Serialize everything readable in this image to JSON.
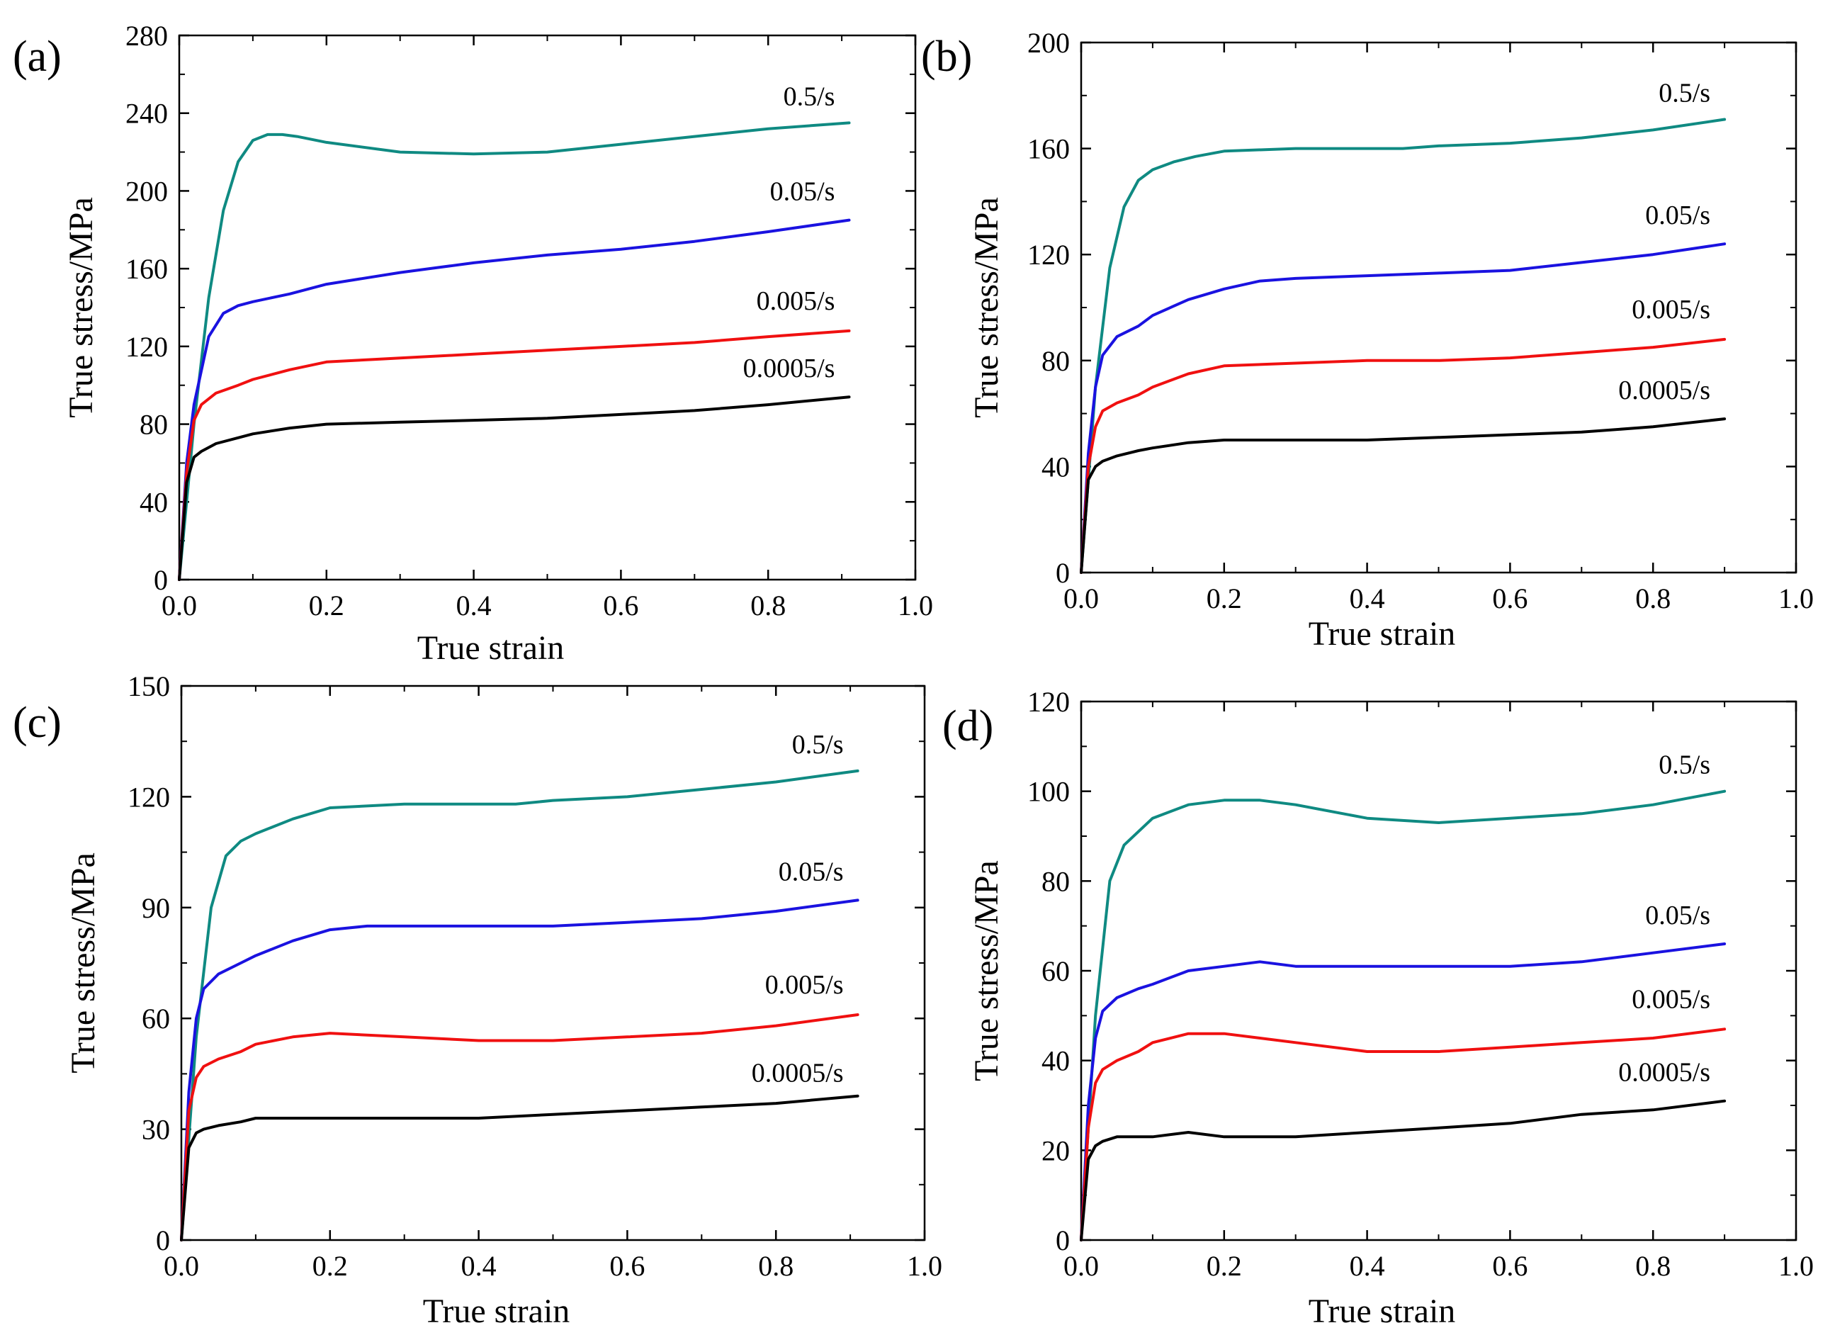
{
  "figure": {
    "description_visible": false
  },
  "chart_data": [
    {
      "panel_label": "(a)",
      "type": "line",
      "xlabel": "True strain",
      "ylabel": "True stress/MPa",
      "xlim": [
        0.0,
        1.0
      ],
      "ylim": [
        0,
        280
      ],
      "xticks": [
        0.0,
        0.2,
        0.4,
        0.6,
        0.8,
        1.0
      ],
      "xtick_labels": [
        "0.0",
        "0.2",
        "0.4",
        "0.6",
        "0.8",
        "1.0"
      ],
      "yticks": [
        0,
        40,
        80,
        120,
        160,
        200,
        240,
        280
      ],
      "ytick_labels": [
        "0",
        "40",
        "80",
        "120",
        "160",
        "200",
        "240",
        "280"
      ],
      "series": [
        {
          "name": "0.5/s",
          "color": "#0f8a82",
          "x": [
            0,
            0.02,
            0.04,
            0.06,
            0.08,
            0.1,
            0.12,
            0.14,
            0.16,
            0.2,
            0.3,
            0.4,
            0.5,
            0.6,
            0.7,
            0.8,
            0.91
          ],
          "y": [
            0,
            80,
            145,
            190,
            215,
            226,
            229,
            229,
            228,
            225,
            220,
            219,
            220,
            224,
            228,
            232,
            235
          ]
        },
        {
          "name": "0.05/s",
          "color": "#1a12e0",
          "x": [
            0,
            0.01,
            0.02,
            0.04,
            0.06,
            0.08,
            0.1,
            0.15,
            0.2,
            0.3,
            0.4,
            0.5,
            0.6,
            0.7,
            0.8,
            0.91
          ],
          "y": [
            0,
            60,
            90,
            125,
            137,
            141,
            143,
            147,
            152,
            158,
            163,
            167,
            170,
            174,
            179,
            185
          ]
        },
        {
          "name": "0.005/s",
          "color": "#f01010",
          "x": [
            0,
            0.01,
            0.02,
            0.03,
            0.05,
            0.08,
            0.1,
            0.15,
            0.2,
            0.3,
            0.4,
            0.5,
            0.6,
            0.7,
            0.8,
            0.91
          ],
          "y": [
            0,
            55,
            82,
            90,
            96,
            100,
            103,
            108,
            112,
            114,
            116,
            118,
            120,
            122,
            125,
            128
          ]
        },
        {
          "name": "0.0005/s",
          "color": "#000000",
          "x": [
            0,
            0.01,
            0.02,
            0.03,
            0.05,
            0.08,
            0.1,
            0.15,
            0.2,
            0.3,
            0.4,
            0.5,
            0.6,
            0.7,
            0.8,
            0.91
          ],
          "y": [
            0,
            50,
            63,
            66,
            70,
            73,
            75,
            78,
            80,
            81,
            82,
            83,
            85,
            87,
            90,
            94
          ]
        }
      ]
    },
    {
      "panel_label": "(b)",
      "type": "line",
      "xlabel": "True strain",
      "ylabel": "True stress/MPa",
      "xlim": [
        0.0,
        1.0
      ],
      "ylim": [
        0,
        200
      ],
      "xticks": [
        0.0,
        0.2,
        0.4,
        0.6,
        0.8,
        1.0
      ],
      "xtick_labels": [
        "0.0",
        "0.2",
        "0.4",
        "0.6",
        "0.8",
        "1.0"
      ],
      "yticks": [
        0,
        40,
        80,
        120,
        160,
        200
      ],
      "ytick_labels": [
        "0",
        "40",
        "80",
        "120",
        "160",
        "200"
      ],
      "series": [
        {
          "name": "0.5/s",
          "color": "#0f8a82",
          "x": [
            0,
            0.02,
            0.04,
            0.06,
            0.08,
            0.1,
            0.13,
            0.16,
            0.2,
            0.3,
            0.4,
            0.45,
            0.5,
            0.6,
            0.7,
            0.8,
            0.9
          ],
          "y": [
            0,
            70,
            115,
            138,
            148,
            152,
            155,
            157,
            159,
            160,
            160,
            160,
            161,
            162,
            164,
            167,
            171
          ]
        },
        {
          "name": "0.05/s",
          "color": "#1a12e0",
          "x": [
            0,
            0.01,
            0.02,
            0.03,
            0.05,
            0.08,
            0.1,
            0.15,
            0.2,
            0.25,
            0.3,
            0.4,
            0.5,
            0.6,
            0.7,
            0.8,
            0.9
          ],
          "y": [
            0,
            45,
            70,
            82,
            89,
            93,
            97,
            103,
            107,
            110,
            111,
            112,
            113,
            114,
            117,
            120,
            124
          ]
        },
        {
          "name": "0.005/s",
          "color": "#f01010",
          "x": [
            0,
            0.01,
            0.02,
            0.03,
            0.05,
            0.08,
            0.1,
            0.15,
            0.2,
            0.3,
            0.4,
            0.5,
            0.6,
            0.7,
            0.8,
            0.9
          ],
          "y": [
            0,
            40,
            55,
            61,
            64,
            67,
            70,
            75,
            78,
            79,
            80,
            80,
            81,
            83,
            85,
            88
          ]
        },
        {
          "name": "0.0005/s",
          "color": "#000000",
          "x": [
            0,
            0.01,
            0.02,
            0.03,
            0.05,
            0.08,
            0.1,
            0.15,
            0.2,
            0.3,
            0.4,
            0.5,
            0.6,
            0.7,
            0.8,
            0.9
          ],
          "y": [
            0,
            35,
            40,
            42,
            44,
            46,
            47,
            49,
            50,
            50,
            50,
            51,
            52,
            53,
            55,
            58
          ]
        }
      ]
    },
    {
      "panel_label": "(c)",
      "type": "line",
      "xlabel": "True strain",
      "ylabel": "True stress/MPa",
      "xlim": [
        0.0,
        1.0
      ],
      "ylim": [
        0,
        150
      ],
      "xticks": [
        0.0,
        0.2,
        0.4,
        0.6,
        0.8,
        1.0
      ],
      "xtick_labels": [
        "0.0",
        "0.2",
        "0.4",
        "0.6",
        "0.8",
        "1.0"
      ],
      "yticks": [
        0,
        30,
        60,
        90,
        120,
        150
      ],
      "ytick_labels": [
        "0",
        "30",
        "60",
        "90",
        "120",
        "150"
      ],
      "series": [
        {
          "name": "0.5/s",
          "color": "#0f8a82",
          "x": [
            0,
            0.02,
            0.04,
            0.06,
            0.08,
            0.1,
            0.15,
            0.2,
            0.3,
            0.4,
            0.45,
            0.5,
            0.6,
            0.7,
            0.8,
            0.91
          ],
          "y": [
            0,
            55,
            90,
            104,
            108,
            110,
            114,
            117,
            118,
            118,
            118,
            119,
            120,
            122,
            124,
            127
          ]
        },
        {
          "name": "0.05/s",
          "color": "#1a12e0",
          "x": [
            0,
            0.01,
            0.02,
            0.03,
            0.05,
            0.08,
            0.1,
            0.15,
            0.2,
            0.25,
            0.3,
            0.4,
            0.5,
            0.6,
            0.7,
            0.8,
            0.91
          ],
          "y": [
            0,
            40,
            60,
            68,
            72,
            75,
            77,
            81,
            84,
            85,
            85,
            85,
            85,
            86,
            87,
            89,
            92
          ]
        },
        {
          "name": "0.005/s",
          "color": "#f01010",
          "x": [
            0,
            0.01,
            0.02,
            0.03,
            0.05,
            0.08,
            0.1,
            0.15,
            0.2,
            0.3,
            0.4,
            0.5,
            0.6,
            0.7,
            0.8,
            0.91
          ],
          "y": [
            0,
            35,
            44,
            47,
            49,
            51,
            53,
            55,
            56,
            55,
            54,
            54,
            55,
            56,
            58,
            61
          ]
        },
        {
          "name": "0.0005/s",
          "color": "#000000",
          "x": [
            0,
            0.01,
            0.02,
            0.03,
            0.05,
            0.08,
            0.1,
            0.15,
            0.2,
            0.3,
            0.4,
            0.5,
            0.6,
            0.7,
            0.8,
            0.91
          ],
          "y": [
            0,
            25,
            29,
            30,
            31,
            32,
            33,
            33,
            33,
            33,
            33,
            34,
            35,
            36,
            37,
            39
          ]
        }
      ]
    },
    {
      "panel_label": "(d)",
      "type": "line",
      "xlabel": "True strain",
      "ylabel": "True stress/MPa",
      "xlim": [
        0.0,
        1.0
      ],
      "ylim": [
        0,
        120
      ],
      "xticks": [
        0.0,
        0.2,
        0.4,
        0.6,
        0.8,
        1.0
      ],
      "xtick_labels": [
        "0.0",
        "0.2",
        "0.4",
        "0.6",
        "0.8",
        "1.0"
      ],
      "yticks": [
        0,
        20,
        40,
        60,
        80,
        100,
        120
      ],
      "ytick_labels": [
        "0",
        "20",
        "40",
        "60",
        "80",
        "100",
        "120"
      ],
      "series": [
        {
          "name": "0.5/s",
          "color": "#0f8a82",
          "x": [
            0,
            0.02,
            0.04,
            0.06,
            0.08,
            0.1,
            0.15,
            0.2,
            0.25,
            0.3,
            0.4,
            0.5,
            0.6,
            0.7,
            0.8,
            0.9
          ],
          "y": [
            0,
            50,
            80,
            88,
            91,
            94,
            97,
            98,
            98,
            97,
            94,
            93,
            94,
            95,
            97,
            100
          ]
        },
        {
          "name": "0.05/s",
          "color": "#1a12e0",
          "x": [
            0,
            0.01,
            0.02,
            0.03,
            0.05,
            0.08,
            0.1,
            0.15,
            0.2,
            0.25,
            0.3,
            0.4,
            0.5,
            0.6,
            0.7,
            0.8,
            0.9
          ],
          "y": [
            0,
            30,
            45,
            51,
            54,
            56,
            57,
            60,
            61,
            62,
            61,
            61,
            61,
            61,
            62,
            64,
            66
          ]
        },
        {
          "name": "0.005/s",
          "color": "#f01010",
          "x": [
            0,
            0.01,
            0.02,
            0.03,
            0.05,
            0.08,
            0.1,
            0.15,
            0.2,
            0.25,
            0.3,
            0.4,
            0.5,
            0.6,
            0.7,
            0.8,
            0.9
          ],
          "y": [
            0,
            25,
            35,
            38,
            40,
            42,
            44,
            46,
            46,
            45,
            44,
            42,
            42,
            43,
            44,
            45,
            47
          ]
        },
        {
          "name": "0.0005/s",
          "color": "#000000",
          "x": [
            0,
            0.01,
            0.02,
            0.03,
            0.05,
            0.08,
            0.1,
            0.15,
            0.2,
            0.3,
            0.4,
            0.5,
            0.6,
            0.7,
            0.8,
            0.9
          ],
          "y": [
            0,
            18,
            21,
            22,
            23,
            23,
            23,
            24,
            23,
            23,
            24,
            25,
            26,
            28,
            29,
            31
          ]
        }
      ]
    }
  ]
}
